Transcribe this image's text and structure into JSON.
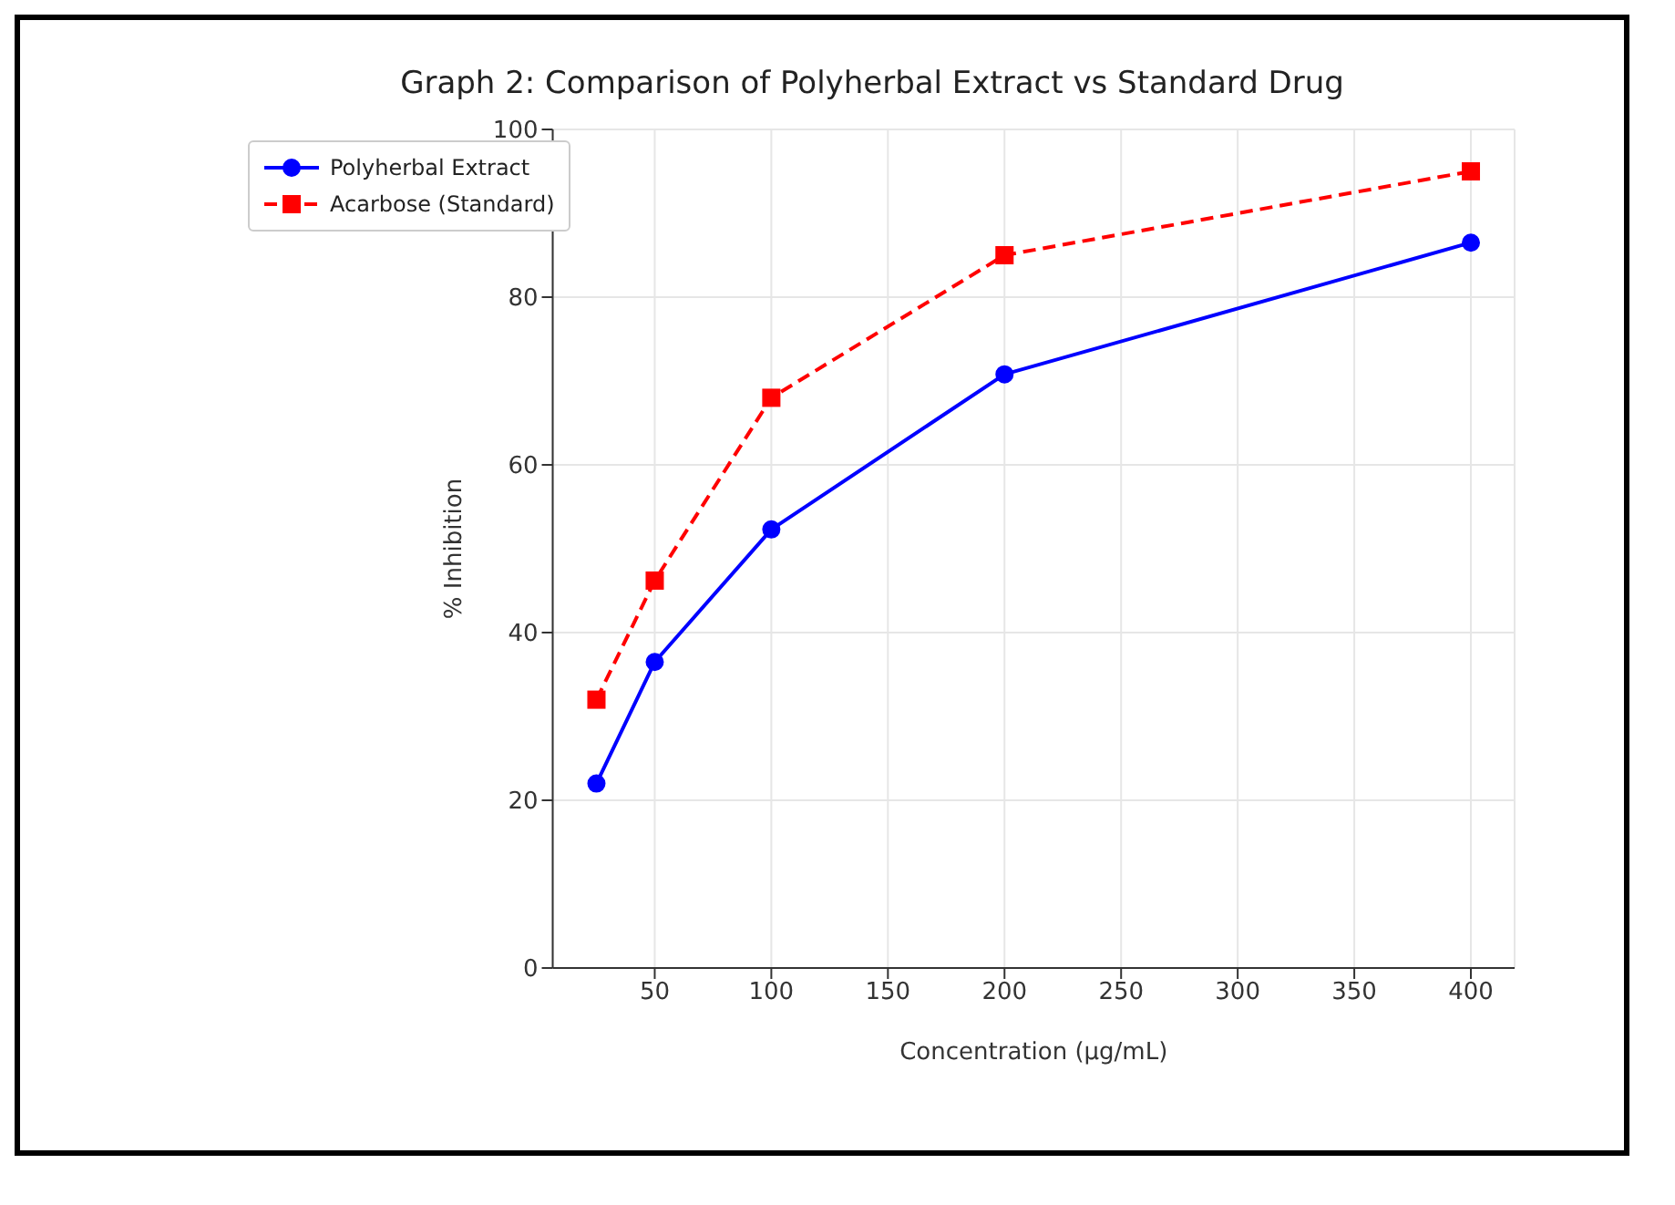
{
  "chart_data": {
    "type": "line",
    "title": "Graph 2: Comparison of Polyherbal Extract vs Standard Drug",
    "xlabel": "Concentration (µg/mL)",
    "ylabel": "% Inhibition",
    "x": [
      25,
      50,
      100,
      200,
      400
    ],
    "series": [
      {
        "name": "Polyherbal Extract",
        "color": "#0000ff",
        "values": [
          22,
          36.5,
          52.3,
          70.8,
          86.5
        ],
        "marker": "circle",
        "line_style": "solid"
      },
      {
        "name": "Acarbose (Standard)",
        "color": "#ff0000",
        "values": [
          32,
          46.2,
          68,
          85,
          95
        ],
        "marker": "square",
        "line_style": "dashed"
      }
    ],
    "xlim": [
      6.25,
      418.75
    ],
    "xticks": [
      50,
      100,
      150,
      200,
      250,
      300,
      350,
      400
    ],
    "ylim": [
      0,
      100
    ],
    "yticks": [
      0,
      20,
      40,
      60,
      80,
      100
    ],
    "grid": true,
    "legend": "top left"
  }
}
